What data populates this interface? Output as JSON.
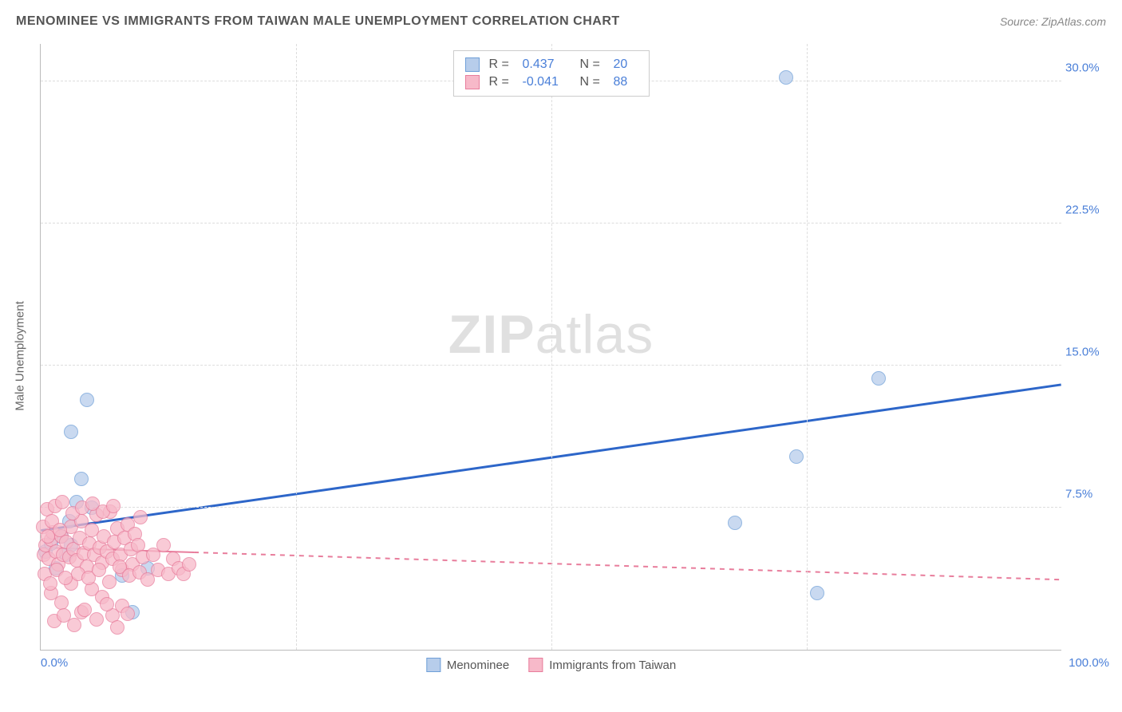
{
  "title": "MENOMINEE VS IMMIGRANTS FROM TAIWAN MALE UNEMPLOYMENT CORRELATION CHART",
  "source": "Source: ZipAtlas.com",
  "watermark_bold": "ZIP",
  "watermark_light": "atlas",
  "y_axis_label": "Male Unemployment",
  "chart": {
    "type": "scatter",
    "xlim": [
      0,
      100
    ],
    "ylim": [
      0,
      32
    ],
    "x_ticks": [
      {
        "v": 0,
        "label": "0.0%"
      },
      {
        "v": 100,
        "label": "100.0%"
      }
    ],
    "y_ticks": [
      {
        "v": 7.5,
        "label": "7.5%"
      },
      {
        "v": 15.0,
        "label": "15.0%"
      },
      {
        "v": 22.5,
        "label": "22.5%"
      },
      {
        "v": 30.0,
        "label": "30.0%"
      }
    ],
    "v_grid": [
      25,
      50,
      75
    ],
    "background_color": "#ffffff",
    "grid_color": "#dddddd",
    "axis_color": "#bbbbbb",
    "tick_color": "#4a7fd8",
    "point_radius": 9,
    "series": [
      {
        "name": "Menominee",
        "fill": "#b7cdeb",
        "stroke": "#6f9fd8",
        "R": 0.437,
        "N": 20,
        "trend": {
          "x1": 0,
          "y1": 6.3,
          "x2": 100,
          "y2": 14.0,
          "color": "#2d66c9",
          "width": 3,
          "dash": null,
          "solid_until_x": 100
        },
        "points": [
          [
            0.5,
            5.2
          ],
          [
            1.0,
            5.6
          ],
          [
            1.5,
            4.3
          ],
          [
            2.0,
            6.0
          ],
          [
            2.5,
            5.0
          ],
          [
            3.0,
            5.5
          ],
          [
            3.5,
            7.8
          ],
          [
            4.5,
            13.2
          ],
          [
            3.0,
            11.5
          ],
          [
            4.0,
            9.0
          ],
          [
            8.0,
            3.9
          ],
          [
            9.0,
            2.0
          ],
          [
            10.5,
            4.3
          ],
          [
            68.0,
            6.7
          ],
          [
            73.0,
            30.2
          ],
          [
            74.0,
            10.2
          ],
          [
            76.0,
            3.0
          ],
          [
            82.0,
            14.3
          ],
          [
            2.8,
            6.8
          ],
          [
            5.0,
            7.5
          ]
        ]
      },
      {
        "name": "Immigrants from Taiwan",
        "fill": "#f7b9c9",
        "stroke": "#e87d9c",
        "R": -0.041,
        "N": 88,
        "trend": {
          "x1": 0,
          "y1": 5.4,
          "x2": 100,
          "y2": 3.7,
          "color": "#e87d9c",
          "width": 2,
          "dash": "6,6",
          "solid_until_x": 15
        },
        "points": [
          [
            0.3,
            5.0
          ],
          [
            0.5,
            5.5
          ],
          [
            0.8,
            4.8
          ],
          [
            1.0,
            5.8
          ],
          [
            1.2,
            6.2
          ],
          [
            1.5,
            5.2
          ],
          [
            1.7,
            4.5
          ],
          [
            2.0,
            6.0
          ],
          [
            2.2,
            5.0
          ],
          [
            2.5,
            5.7
          ],
          [
            2.8,
            4.9
          ],
          [
            3.0,
            6.5
          ],
          [
            3.2,
            5.3
          ],
          [
            3.5,
            4.7
          ],
          [
            3.8,
            5.9
          ],
          [
            4.0,
            6.8
          ],
          [
            4.2,
            5.1
          ],
          [
            4.5,
            4.4
          ],
          [
            4.8,
            5.6
          ],
          [
            5.0,
            6.3
          ],
          [
            5.2,
            5.0
          ],
          [
            5.5,
            7.1
          ],
          [
            5.8,
            5.4
          ],
          [
            6.0,
            4.6
          ],
          [
            6.2,
            6.0
          ],
          [
            6.5,
            5.2
          ],
          [
            6.8,
            7.3
          ],
          [
            7.0,
            4.8
          ],
          [
            7.2,
            5.7
          ],
          [
            7.5,
            6.4
          ],
          [
            7.8,
            5.0
          ],
          [
            8.0,
            4.2
          ],
          [
            8.2,
            5.9
          ],
          [
            8.5,
            6.6
          ],
          [
            8.8,
            5.3
          ],
          [
            9.0,
            4.5
          ],
          [
            9.2,
            6.1
          ],
          [
            9.5,
            5.5
          ],
          [
            9.8,
            7.0
          ],
          [
            10.0,
            4.9
          ],
          [
            0.6,
            7.4
          ],
          [
            1.4,
            7.6
          ],
          [
            2.1,
            7.8
          ],
          [
            3.1,
            7.2
          ],
          [
            4.1,
            7.5
          ],
          [
            5.1,
            7.7
          ],
          [
            6.1,
            7.3
          ],
          [
            7.1,
            7.6
          ],
          [
            1.0,
            3.0
          ],
          [
            2.0,
            2.5
          ],
          [
            3.0,
            3.5
          ],
          [
            4.0,
            2.0
          ],
          [
            5.0,
            3.2
          ],
          [
            6.0,
            2.8
          ],
          [
            7.0,
            1.8
          ],
          [
            8.0,
            2.3
          ],
          [
            1.3,
            1.5
          ],
          [
            2.3,
            1.8
          ],
          [
            3.3,
            1.3
          ],
          [
            4.3,
            2.1
          ],
          [
            5.5,
            1.6
          ],
          [
            6.5,
            2.4
          ],
          [
            7.5,
            1.2
          ],
          [
            8.5,
            1.9
          ],
          [
            3.7,
            4.0
          ],
          [
            4.7,
            3.8
          ],
          [
            5.7,
            4.2
          ],
          [
            6.7,
            3.6
          ],
          [
            7.7,
            4.4
          ],
          [
            8.7,
            3.9
          ],
          [
            9.7,
            4.1
          ],
          [
            10.5,
            3.7
          ],
          [
            11.0,
            5.0
          ],
          [
            11.5,
            4.2
          ],
          [
            12.0,
            5.5
          ],
          [
            12.5,
            4.0
          ],
          [
            13.0,
            4.8
          ],
          [
            13.5,
            4.3
          ],
          [
            14.0,
            4.0
          ],
          [
            14.5,
            4.5
          ],
          [
            0.2,
            6.5
          ],
          [
            0.4,
            4.0
          ],
          [
            0.7,
            6.0
          ],
          [
            0.9,
            3.5
          ],
          [
            1.1,
            6.8
          ],
          [
            1.6,
            4.2
          ],
          [
            1.9,
            6.3
          ],
          [
            2.4,
            3.8
          ]
        ]
      }
    ]
  },
  "legend_top_labels": {
    "R": "R =",
    "N": "N ="
  },
  "legend_bottom": [
    {
      "label": "Menominee",
      "fill": "#b7cdeb",
      "stroke": "#6f9fd8"
    },
    {
      "label": "Immigrants from Taiwan",
      "fill": "#f7b9c9",
      "stroke": "#e87d9c"
    }
  ]
}
